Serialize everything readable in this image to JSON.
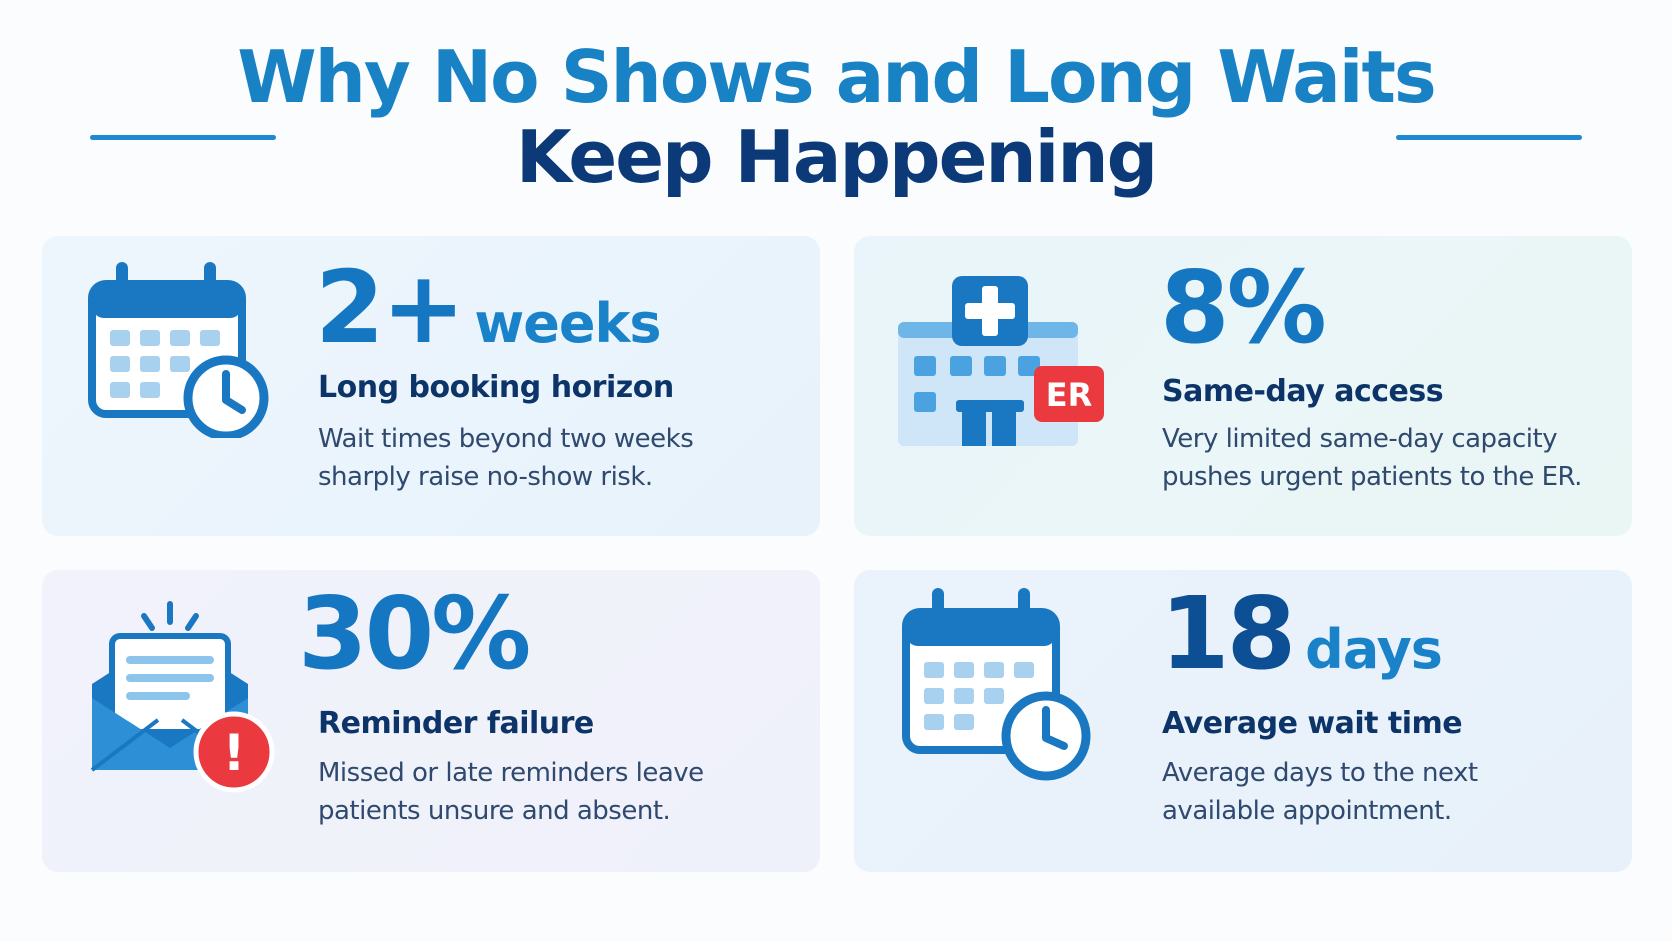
{
  "title": {
    "line1": "Why No Shows and Long Waits",
    "line2": "Keep Happening"
  },
  "colors": {
    "title_primary": "#1982c4",
    "title_secondary": "#0c3a78",
    "accent_blue": "#1576c1",
    "alert_red": "#ea3a3f"
  },
  "cards": [
    {
      "icon": "calendar-clock-icon",
      "stat_number": "2+",
      "stat_unit": "weeks",
      "heading": "Long booking horizon",
      "desc_line1": "Wait times beyond two weeks",
      "desc_line2": "sharply raise no-show risk."
    },
    {
      "icon": "hospital-er-icon",
      "er_label": "ER",
      "stat_number": "8%",
      "stat_unit": "",
      "heading": "Same-day access",
      "desc_line1": "Very limited same-day capacity",
      "desc_line2": "pushes urgent patients to the ER."
    },
    {
      "icon": "envelope-alert-icon",
      "alert_label": "!",
      "stat_number": "30%",
      "stat_unit": "",
      "heading": "Reminder failure",
      "desc_line1": "Missed or late reminders leave",
      "desc_line2": "patients unsure and absent."
    },
    {
      "icon": "calendar-clock-icon",
      "stat_number": "18",
      "stat_unit": "days",
      "heading": "Average wait time",
      "desc_line1": "Average days to the next",
      "desc_line2": "available appointment."
    }
  ]
}
